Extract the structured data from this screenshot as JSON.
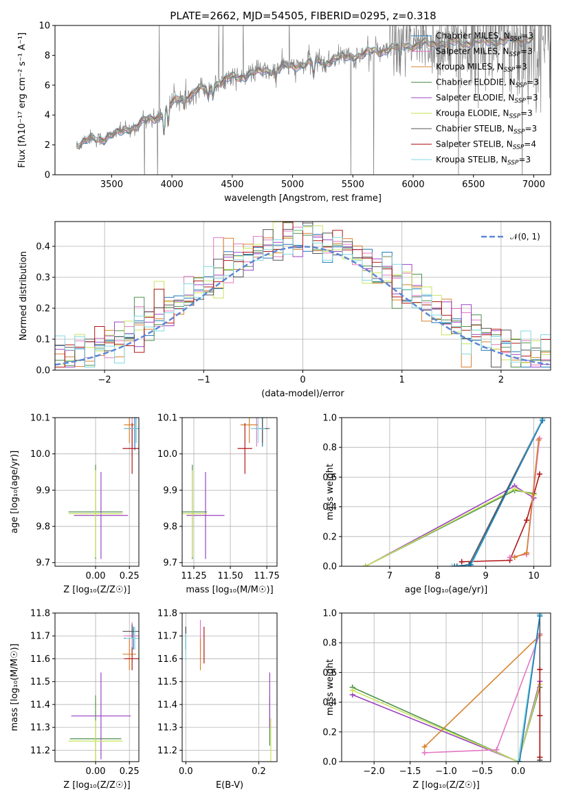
{
  "figure_title": "PLATE=2662, MJD=54505, FIBERID=0295, z=0.318",
  "colors": {
    "chabrier_miles": "#1f77b4",
    "salpeter_miles": "#e377c2",
    "kroupa_miles": "#d6812c",
    "chabrier_elodie": "#4e8f4e",
    "salpeter_elodie": "#9b42c2",
    "kroupa_elodie": "#c7e35a",
    "chabrier_stelib": "#555555",
    "salpeter_stelib": "#b01515",
    "kroupa_stelib": "#7fd8e0",
    "data_spectrum": "#808080",
    "gaussian": "#5b87d6"
  },
  "chart_data": [
    {
      "type": "line",
      "id": "spectrum",
      "xlabel": "wavelength [Angstrom, rest frame]",
      "ylabel": "Flux [fλ10⁻¹⁷ erg cm⁻² s⁻¹ A⁻¹]",
      "xlim": [
        3030,
        7140
      ],
      "ylim": [
        0,
        10
      ],
      "xticks": [
        3500,
        4000,
        4500,
        5000,
        5500,
        6000,
        6500,
        7000
      ],
      "yticks": [
        0,
        2,
        4,
        6,
        8,
        10
      ],
      "grid": false,
      "legend_position": "top-right",
      "legend": [
        "Chabrier MILES, N_SSP=3",
        "Salpeter MILES, N_SSP=3",
        "Kroupa MILES, N_SSP=3",
        "Chabrier ELODIE, N_SSP=3",
        "Salpeter ELODIE, N_SSP=3",
        "Kroupa ELODIE, N_SSP=3",
        "Chabrier STELIB, N_SSP=3",
        "Salpeter STELIB, N_SSP=4",
        "Kroupa STELIB, N_SSP=3"
      ],
      "continuum_wavelength": [
        3200,
        3300,
        3500,
        3700,
        3900,
        4000,
        4200,
        4500,
        4800,
        5000,
        5300,
        5600,
        5900,
        6000,
        6200,
        6500,
        6800,
        7000
      ],
      "continuum_flux": [
        2.0,
        2.3,
        2.6,
        3.3,
        4.0,
        4.8,
        5.6,
        6.5,
        7.0,
        7.3,
        7.7,
        8.1,
        8.6,
        8.7,
        8.8,
        8.9,
        9.0,
        9.1
      ]
    },
    {
      "type": "bar",
      "id": "residual-histogram",
      "xlabel": "(data-model)/error",
      "ylabel": "Normed distribution",
      "xlim": [
        -2.5,
        2.5
      ],
      "ylim": [
        0,
        0.48
      ],
      "xticks": [
        -2,
        -1,
        0,
        1,
        2
      ],
      "yticks": [
        0.0,
        0.1,
        0.2,
        0.3,
        0.4
      ],
      "grid": true,
      "legend_position": "top-right",
      "legend": [
        "𝒩(0, 1)"
      ],
      "bin_width": 0.1,
      "mean_profile_sigma": 1.0
    },
    {
      "type": "scatter",
      "id": "age-vs-metallicity",
      "xlabel": "Z [log₁₀(Z/Z☉)]",
      "ylabel": "age  [log₁₀(age/yr)]",
      "xlim": [
        -0.3,
        0.32
      ],
      "ylim": [
        9.69,
        10.1
      ],
      "xticks": [
        0.0,
        0.25
      ],
      "yticks": [
        9.7,
        9.8,
        9.9,
        10.0,
        10.1
      ],
      "grid": true,
      "points": [
        {
          "model": "chabrier_miles",
          "x": 0.29,
          "y": 10.07,
          "xerr": 0.05,
          "yerr": 0.06
        },
        {
          "model": "salpeter_miles",
          "x": 0.27,
          "y": 10.07,
          "xerr": 0.05,
          "yerr": 0.05
        },
        {
          "model": "kroupa_miles",
          "x": 0.25,
          "y": 10.08,
          "xerr": 0.04,
          "yerr": 0.05
        },
        {
          "model": "chabrier_elodie",
          "x": 0.0,
          "y": 9.84,
          "xerr": 0.2,
          "yerr": 0.13
        },
        {
          "model": "salpeter_elodie",
          "x": 0.04,
          "y": 9.83,
          "xerr": 0.2,
          "yerr": 0.12
        },
        {
          "model": "kroupa_elodie",
          "x": 0.0,
          "y": 9.835,
          "xerr": 0.2,
          "yerr": 0.12
        },
        {
          "model": "chabrier_stelib",
          "x": 0.3,
          "y": 10.07,
          "xerr": 0.09,
          "yerr": 0.04
        },
        {
          "model": "salpeter_stelib",
          "x": 0.27,
          "y": 10.015,
          "xerr": 0.07,
          "yerr": 0.07
        },
        {
          "model": "kroupa_stelib",
          "x": 0.3,
          "y": 10.07,
          "xerr": 0.09,
          "yerr": 0.04
        }
      ]
    },
    {
      "type": "scatter",
      "id": "age-vs-mass",
      "xlabel": "mass [log₁₀(M/M☉)]",
      "ylabel": "",
      "xlim": [
        11.17,
        11.82
      ],
      "ylim": [
        9.69,
        10.1
      ],
      "xticks": [
        11.25,
        11.5,
        11.75
      ],
      "yticks": [
        9.7,
        9.8,
        9.9,
        10.0,
        10.1
      ],
      "grid": true,
      "points": [
        {
          "model": "chabrier_miles",
          "x": 11.72,
          "y": 10.07,
          "xerr": 0.03,
          "yerr": 0.05
        },
        {
          "model": "salpeter_miles",
          "x": 11.68,
          "y": 10.07,
          "xerr": 0.04,
          "yerr": 0.05
        },
        {
          "model": "kroupa_miles",
          "x": 11.63,
          "y": 10.08,
          "xerr": 0.06,
          "yerr": 0.05
        },
        {
          "model": "chabrier_elodie",
          "x": 11.24,
          "y": 9.84,
          "xerr": 0.1,
          "yerr": 0.13
        },
        {
          "model": "salpeter_elodie",
          "x": 11.33,
          "y": 9.83,
          "xerr": 0.13,
          "yerr": 0.12
        },
        {
          "model": "kroupa_elodie",
          "x": 11.24,
          "y": 9.835,
          "xerr": 0.1,
          "yerr": 0.12
        },
        {
          "model": "chabrier_stelib",
          "x": 11.72,
          "y": 10.07,
          "xerr": 0.05,
          "yerr": 0.04
        },
        {
          "model": "salpeter_stelib",
          "x": 11.6,
          "y": 10.015,
          "xerr": 0.05,
          "yerr": 0.07
        },
        {
          "model": "kroupa_stelib",
          "x": 11.69,
          "y": 10.07,
          "xerr": 0.05,
          "yerr": 0.04
        }
      ]
    },
    {
      "type": "line",
      "id": "mass-weight-vs-age",
      "xlabel": "age  [log₁₀(age/yr)]",
      "ylabel": "mass weight",
      "xlim": [
        6.0,
        10.35
      ],
      "ylim": [
        0,
        1.0
      ],
      "xticks": [
        7,
        8,
        9,
        10
      ],
      "yticks": [
        0.0,
        0.2,
        0.4,
        0.6,
        0.8,
        1.0
      ],
      "grid": true,
      "series": [
        {
          "model": "chabrier_elodie",
          "x": [
            6.5,
            9.6,
            10.0
          ],
          "y": [
            0.0,
            0.51,
            0.49
          ]
        },
        {
          "model": "salpeter_elodie",
          "x": [
            6.5,
            9.6,
            10.0
          ],
          "y": [
            0.0,
            0.54,
            0.46
          ]
        },
        {
          "model": "kroupa_elodie",
          "x": [
            6.5,
            9.6,
            10.0
          ],
          "y": [
            0.0,
            0.52,
            0.48
          ]
        },
        {
          "model": "salpeter_stelib",
          "x": [
            8.5,
            9.5,
            9.85,
            10.12
          ],
          "y": [
            0.03,
            0.04,
            0.31,
            0.62
          ]
        },
        {
          "model": "salpeter_miles",
          "x": [
            9.5,
            9.85,
            10.12
          ],
          "y": [
            0.06,
            0.08,
            0.86
          ]
        },
        {
          "model": "kroupa_miles",
          "x": [
            9.6,
            9.85,
            10.1
          ],
          "y": [
            0.06,
            0.09,
            0.85
          ]
        },
        {
          "model": "chabrier_stelib",
          "x": [
            8.4,
            8.65,
            10.18
          ],
          "y": [
            0.0,
            0.01,
            0.99
          ]
        },
        {
          "model": "kroupa_stelib",
          "x": [
            8.3,
            8.7,
            10.18
          ],
          "y": [
            0.0,
            0.01,
            0.99
          ]
        },
        {
          "model": "chabrier_miles",
          "x": [
            8.35,
            8.68,
            10.18
          ],
          "y": [
            0.0,
            0.01,
            0.98
          ]
        }
      ]
    },
    {
      "type": "scatter",
      "id": "mass-vs-metallicity",
      "xlabel": "Z [log₁₀(Z/Z☉)]",
      "ylabel": "mass [log₁₀(M/M☉)]",
      "xlim": [
        -0.3,
        0.32
      ],
      "ylim": [
        11.15,
        11.8
      ],
      "xticks": [
        0.0,
        0.25
      ],
      "yticks": [
        11.2,
        11.3,
        11.4,
        11.5,
        11.6,
        11.7,
        11.8
      ],
      "grid": true,
      "points": [
        {
          "model": "chabrier_miles",
          "x": 0.28,
          "y": 11.69,
          "xerr": 0.07,
          "yerr": 0.05
        },
        {
          "model": "salpeter_miles",
          "x": 0.27,
          "y": 11.7,
          "xerr": 0.06,
          "yerr": 0.06
        },
        {
          "model": "kroupa_miles",
          "x": 0.25,
          "y": 11.62,
          "xerr": 0.05,
          "yerr": 0.07
        },
        {
          "model": "chabrier_elodie",
          "x": 0.0,
          "y": 11.25,
          "xerr": 0.19,
          "yerr": 0.19
        },
        {
          "model": "salpeter_elodie",
          "x": 0.04,
          "y": 11.35,
          "xerr": 0.22,
          "yerr": 0.19
        },
        {
          "model": "kroupa_elodie",
          "x": 0.0,
          "y": 11.24,
          "xerr": 0.2,
          "yerr": 0.09
        },
        {
          "model": "chabrier_stelib",
          "x": 0.27,
          "y": 11.72,
          "xerr": 0.07,
          "yerr": 0.03
        },
        {
          "model": "salpeter_stelib",
          "x": 0.27,
          "y": 11.6,
          "xerr": 0.06,
          "yerr": 0.05
        },
        {
          "model": "kroupa_stelib",
          "x": 0.29,
          "y": 11.69,
          "xerr": 0.07,
          "yerr": 0.05
        }
      ]
    },
    {
      "type": "scatter",
      "id": "mass-vs-ebv",
      "xlabel": "E(B-V)",
      "ylabel": "",
      "xlim": [
        -0.01,
        0.25
      ],
      "ylim": [
        11.15,
        11.8
      ],
      "xticks": [
        0.0,
        0.2
      ],
      "yticks": [
        11.2,
        11.3,
        11.4,
        11.5,
        11.6,
        11.7,
        11.8
      ],
      "grid": true,
      "points": [
        {
          "model": "chabrier_miles",
          "x": 0.0,
          "y": 11.69,
          "yerr": 0.05
        },
        {
          "model": "salpeter_miles",
          "x": 0.04,
          "y": 11.7,
          "yerr": 0.07
        },
        {
          "model": "kroupa_miles",
          "x": 0.04,
          "y": 11.62,
          "yerr": 0.07
        },
        {
          "model": "chabrier_elodie",
          "x": 0.23,
          "y": 11.33,
          "yerr": 0.11
        },
        {
          "model": "salpeter_elodie",
          "x": 0.23,
          "y": 11.42,
          "yerr": 0.12
        },
        {
          "model": "kroupa_elodie",
          "x": 0.233,
          "y": 11.24,
          "yerr": 0.1
        },
        {
          "model": "chabrier_stelib",
          "x": 0.0,
          "y": 11.69,
          "yerr": 0.05
        },
        {
          "model": "salpeter_stelib",
          "x": 0.05,
          "y": 11.66,
          "yerr": 0.08
        },
        {
          "model": "kroupa_stelib",
          "x": 0.0,
          "y": 11.65,
          "yerr": 0.06
        }
      ]
    },
    {
      "type": "line",
      "id": "mass-weight-vs-metallicity",
      "xlabel": "Z [log₁₀(Z/Z☉)]",
      "ylabel": "mass weight",
      "xlim": [
        -2.45,
        0.45
      ],
      "ylim": [
        0,
        1.0
      ],
      "xticks": [
        -2.0,
        -1.5,
        -1.0,
        -0.5,
        0.0
      ],
      "yticks": [
        0.0,
        0.2,
        0.4,
        0.6,
        0.8,
        1.0
      ],
      "grid": true,
      "series": [
        {
          "model": "chabrier_elodie",
          "x": [
            -2.3,
            0.0,
            0.3
          ],
          "y": [
            0.5,
            0.0,
            0.5
          ]
        },
        {
          "model": "salpeter_elodie",
          "x": [
            -2.3,
            0.0,
            0.3
          ],
          "y": [
            0.45,
            0.0,
            0.54
          ]
        },
        {
          "model": "kroupa_elodie",
          "x": [
            -2.3,
            0.0,
            0.3
          ],
          "y": [
            0.48,
            0.0,
            0.52
          ]
        },
        {
          "model": "kroupa_miles",
          "x": [
            -1.3,
            0.3
          ],
          "y": [
            0.1,
            0.85
          ]
        },
        {
          "model": "salpeter_miles",
          "x": [
            -1.3,
            -0.3,
            0.3
          ],
          "y": [
            0.06,
            0.08,
            0.86
          ]
        },
        {
          "model": "chabrier_stelib",
          "x": [
            0.3,
            0.3
          ],
          "y": [
            0.01,
            0.99
          ]
        },
        {
          "model": "kroupa_stelib",
          "x": [
            0.0,
            0.3
          ],
          "y": [
            0.0,
            0.99
          ]
        },
        {
          "model": "chabrier_miles",
          "x": [
            0.02,
            0.3
          ],
          "y": [
            0.0,
            0.98
          ]
        },
        {
          "model": "salpeter_stelib",
          "x": [
            0.3,
            0.3,
            0.3
          ],
          "y": [
            0.03,
            0.31,
            0.62
          ]
        }
      ]
    }
  ]
}
